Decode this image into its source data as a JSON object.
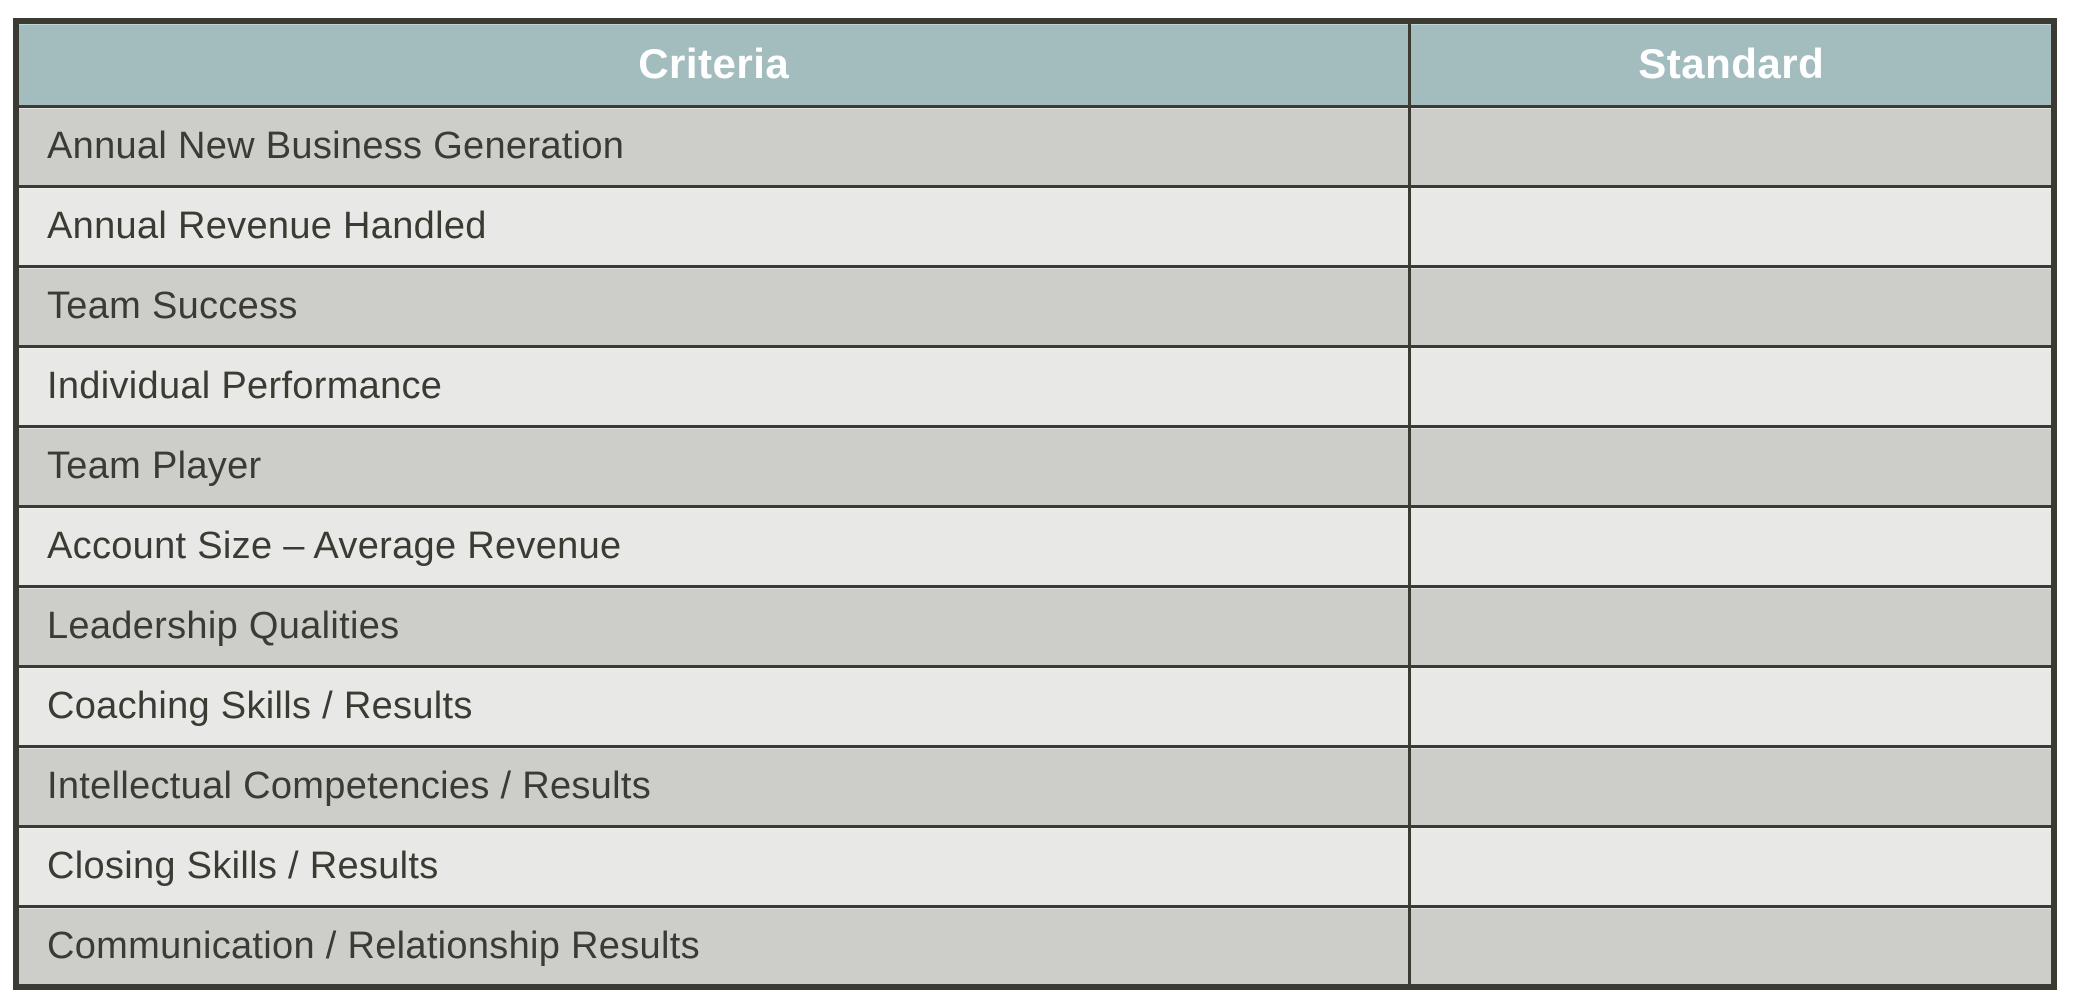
{
  "table": {
    "header": {
      "criteria": "Criteria",
      "standard": "Standard"
    },
    "rows": [
      {
        "criteria": "Annual New Business Generation",
        "standard": ""
      },
      {
        "criteria": "Annual Revenue Handled",
        "standard": ""
      },
      {
        "criteria": "Team Success",
        "standard": ""
      },
      {
        "criteria": "Individual Performance",
        "standard": ""
      },
      {
        "criteria": "Team Player",
        "standard": ""
      },
      {
        "criteria": "Account Size – Average Revenue",
        "standard": ""
      },
      {
        "criteria": "Leadership Qualities",
        "standard": ""
      },
      {
        "criteria": "Coaching Skills / Results",
        "standard": ""
      },
      {
        "criteria": "Intellectual Competencies / Results",
        "standard": ""
      },
      {
        "criteria": "Closing Skills / Results",
        "standard": ""
      },
      {
        "criteria": "Communication / Relationship Results",
        "standard": ""
      }
    ]
  },
  "colors": {
    "header_bg": "#a3bdbf",
    "row_odd_bg": "#cdcdca",
    "row_even_bg": "#e8e8e6",
    "border": "#3b3a33",
    "header_text": "#ffffff",
    "cell_text": "#3b3a33",
    "page_bg": "#ffffff"
  }
}
